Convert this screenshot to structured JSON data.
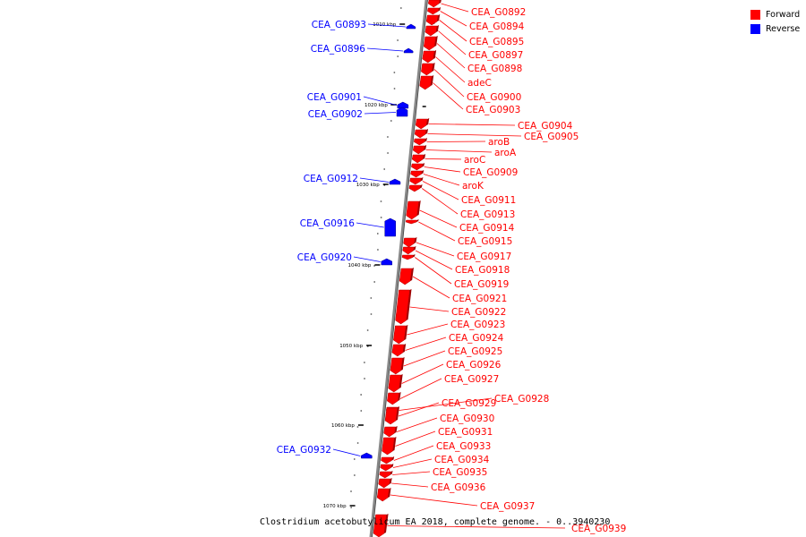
{
  "caption": "Clostridium acetobutylicum EA 2018, complete genome. - 0..3940230",
  "legend": [
    {
      "label": "Forward",
      "color": "#ff0000"
    },
    {
      "label": "Reverse",
      "color": "#0000ff"
    }
  ],
  "colors": {
    "forward": "#ff0000",
    "reverse": "#0000ff",
    "axis": "#888888"
  },
  "scale_labels": [
    "1010 kbp",
    "1020 kbp",
    "1030 kbp",
    "1040 kbp",
    "1050 kbp",
    "1060 kbp",
    "1070 kbp"
  ],
  "forward_genes": [
    "CEA_G0892",
    "CEA_G0894",
    "CEA_G0895",
    "CEA_G0897",
    "CEA_G0898",
    "adeC",
    "CEA_G0900",
    "CEA_G0903",
    "CEA_G0904",
    "CEA_G0905",
    "aroB",
    "aroA",
    "aroC",
    "CEA_G0909",
    "aroK",
    "CEA_G0911",
    "CEA_G0913",
    "CEA_G0914",
    "CEA_G0915",
    "CEA_G0917",
    "CEA_G0918",
    "CEA_G0919",
    "CEA_G0921",
    "CEA_G0922",
    "CEA_G0923",
    "CEA_G0924",
    "CEA_G0925",
    "CEA_G0926",
    "CEA_G0927",
    "CEA_G0928",
    "CEA_G0929",
    "CEA_G0930",
    "CEA_G0931",
    "CEA_G0933",
    "CEA_G0934",
    "CEA_G0935",
    "CEA_G0936",
    "CEA_G0937",
    "CEA_G0939"
  ],
  "reverse_genes": [
    "CEA_G0893",
    "CEA_G0896",
    "CEA_G0901",
    "CEA_G0902",
    "CEA_G0912",
    "CEA_G0916",
    "CEA_G0920",
    "CEA_G0932"
  ]
}
